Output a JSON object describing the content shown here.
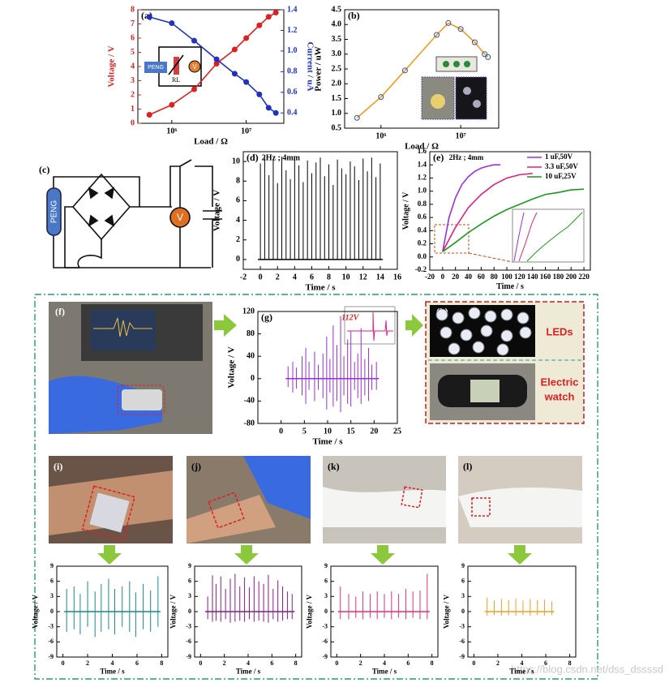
{
  "chart_data": [
    {
      "type": "line",
      "label": "(a)",
      "xscale": "log",
      "xlim": [
        350000,
        32000000
      ],
      "xticks": [
        {
          "value": 1000000,
          "label": "10⁶"
        },
        {
          "value": 10000000,
          "label": "10⁷"
        }
      ],
      "ylim": [
        0,
        8
      ],
      "yticks": [
        0,
        1,
        2,
        3,
        4,
        5,
        6,
        7,
        8
      ],
      "y2lim": [
        0.3,
        1.4
      ],
      "y2ticks": [
        0.4,
        0.6,
        0.8,
        {
          "value": 1,
          "label": "1.0"
        },
        1.2,
        1.4
      ],
      "xlabel": "Load / Ω",
      "ylabel": "Voltage / V",
      "y2label": "Current / uA",
      "ycolor": "#e02020",
      "y2color": "#2030c0",
      "x": [
        500000,
        1000000,
        2000000,
        4000000,
        7000000,
        10000000,
        15000000,
        20000000,
        25000000
      ],
      "series": [
        {
          "color": "#e02020",
          "marker": true,
          "values": [
            0.6,
            1.3,
            2.4,
            4.2,
            5.2,
            6.0,
            6.9,
            7.5,
            7.8
          ]
        },
        {
          "color": "#2030c0",
          "marker": true,
          "axis": "y2",
          "values": [
            1.33,
            1.27,
            1.1,
            0.92,
            0.78,
            0.7,
            0.58,
            0.45,
            0.4
          ]
        }
      ],
      "inset": [
        "PENG",
        "RL",
        "V"
      ]
    },
    {
      "type": "line",
      "label": "(b)",
      "xscale": "log",
      "xlim": [
        350000,
        30000000
      ],
      "xticks": [
        {
          "value": 1000000,
          "label": "10⁶"
        },
        {
          "value": 10000000,
          "label": "10⁷"
        }
      ],
      "ylim": [
        0.5,
        4.5
      ],
      "yticks": [
        0.5,
        {
          "value": 1,
          "label": "1.0"
        },
        1.5,
        {
          "value": 2,
          "label": "2.0"
        },
        2.5,
        {
          "value": 3,
          "label": "3.0"
        },
        3.5,
        {
          "value": 4,
          "label": "4.0"
        },
        4.5
      ],
      "xlabel": "Load / Ω",
      "ylabel": "Power / uW",
      "x": [
        500000,
        1000000,
        2000000,
        5000000,
        7000000,
        10000000,
        15000000,
        20000000,
        22000000
      ],
      "series": [
        {
          "color": "#f59a1a",
          "marker": true,
          "marker_color": "#3050a0",
          "values": [
            0.85,
            1.55,
            2.45,
            3.65,
            4.05,
            3.85,
            3.4,
            3.0,
            2.9
          ]
        }
      ]
    },
    {
      "type": "stem",
      "label": "(d)",
      "annotation": "2Hz ; 4mm",
      "xlim": [
        -2,
        16
      ],
      "xticks": [
        -2,
        0,
        2,
        4,
        6,
        8,
        10,
        12,
        14,
        16
      ],
      "ylim": [
        -1,
        11
      ],
      "yticks": [
        0,
        2,
        4,
        6,
        8,
        10
      ],
      "xlabel": "Time / s",
      "ylabel": "Voltage / V",
      "x": [
        0,
        0.5,
        1,
        1.5,
        2,
        2.5,
        3,
        3.5,
        4,
        4.5,
        5,
        5.5,
        6,
        6.5,
        7,
        7.5,
        8,
        8.5,
        9,
        9.5,
        10,
        10.5,
        11,
        11.5,
        12,
        12.5,
        13,
        13.5,
        14
      ],
      "series": [
        {
          "color": "#000000",
          "values": [
            9.8,
            10.4,
            8.6,
            10.2,
            7.8,
            10.5,
            9.1,
            8.2,
            10.3,
            9.6,
            7.9,
            10.1,
            8.8,
            9.9,
            10.4,
            8.5,
            9.7,
            7.6,
            10.2,
            9.3,
            8.7,
            10.0,
            9.5,
            8.1,
            10.3,
            9.0,
            10.4,
            8.4,
            9.8
          ]
        }
      ]
    },
    {
      "type": "line",
      "label": "(e)",
      "annotation": "2Hz ; 4mm",
      "legend": "upper right",
      "xlim": [
        -20,
        230
      ],
      "xticks": [
        -20,
        0,
        20,
        40,
        60,
        80,
        100,
        120,
        140,
        160,
        180,
        200,
        220
      ],
      "ylim": [
        -0.2,
        1.6
      ],
      "yticks": [
        -0.2,
        {
          "value": 0,
          "label": "0.0"
        },
        0.2,
        0.4,
        0.6,
        0.8,
        {
          "value": 1,
          "label": "1.0"
        },
        1.2,
        1.4,
        1.6
      ],
      "xlabel": "Time / s",
      "ylabel": "Voltage / V",
      "series": [
        {
          "name": "1  uF,50V",
          "color": "#9b30e0",
          "x": [
            0,
            10,
            20,
            30,
            40,
            50,
            60,
            70,
            80,
            90
          ],
          "values": [
            0.08,
            0.6,
            0.9,
            1.1,
            1.22,
            1.3,
            1.35,
            1.38,
            1.4,
            1.4
          ]
        },
        {
          "name": "3.3 uF,50V",
          "color": "#e0207a",
          "x": [
            0,
            20,
            40,
            60,
            80,
            100,
            120,
            140
          ],
          "values": [
            0.08,
            0.45,
            0.75,
            0.95,
            1.1,
            1.2,
            1.25,
            1.27
          ]
        },
        {
          "name": "10  uF,25V",
          "color": "#1a9a1a",
          "x": [
            0,
            20,
            40,
            60,
            80,
            100,
            120,
            140,
            160,
            180,
            200,
            220
          ],
          "values": [
            0.08,
            0.22,
            0.37,
            0.5,
            0.62,
            0.72,
            0.8,
            0.88,
            0.95,
            0.98,
            1.02,
            1.03
          ]
        }
      ]
    },
    {
      "type": "stem",
      "label": "(g)",
      "annotation": "112V",
      "annotation_color": "#e02020",
      "xlim": [
        -5,
        25
      ],
      "xticks": [
        0,
        5,
        10,
        15,
        20,
        25
      ],
      "ylim": [
        -80,
        120
      ],
      "yticks": [
        -80,
        -40,
        0,
        40,
        80,
        120
      ],
      "xlabel": "Time / s",
      "ylabel": "Voltage / V",
      "x": [
        1.5,
        2.5,
        3.3,
        4.5,
        5.3,
        6.0,
        7.2,
        8.0,
        9.0,
        9.8,
        10.5,
        11.2,
        12.0,
        12.8,
        13.5,
        14.3,
        15.0,
        15.8,
        16.5,
        17.2,
        18.0,
        18.8,
        19.5,
        20.5
      ],
      "series": [
        {
          "color": "#9b30d0",
          "values": [
            22,
            30,
            20,
            40,
            55,
            30,
            48,
            25,
            45,
            75,
            35,
            95,
            60,
            112,
            40,
            70,
            85,
            30,
            45,
            90,
            35,
            55,
            25,
            30
          ]
        },
        {
          "color": "#9b30d0",
          "values": [
            -15,
            -25,
            -18,
            -30,
            -45,
            -20,
            -40,
            -20,
            -35,
            -55,
            -25,
            -50,
            -40,
            -60,
            -30,
            -45,
            -50,
            -20,
            -35,
            -45,
            -30,
            -40,
            -20,
            -20
          ]
        }
      ]
    },
    {
      "type": "stem",
      "xlim": [
        -0.5,
        8.5
      ],
      "xticks": [
        0,
        2,
        4,
        6,
        8
      ],
      "ylim": [
        -9,
        9
      ],
      "yticks": [
        -9,
        -6,
        -3,
        0,
        3,
        6,
        9
      ],
      "xlabel": "Time / s",
      "ylabel": "Voltage / V",
      "x": [
        0.3,
        0.9,
        1.4,
        2.0,
        2.6,
        3.1,
        3.7,
        4.2,
        4.8,
        5.4,
        5.9,
        6.5,
        7.1,
        7.7
      ],
      "series": [
        {
          "color": "#1a8a8a",
          "values": [
            4.5,
            5,
            3.5,
            6,
            4,
            5.5,
            6.5,
            4.5,
            5,
            6,
            3.8,
            5.5,
            4.2,
            7
          ]
        },
        {
          "color": "#1a8a8a",
          "values": [
            -4,
            -3.5,
            -4.5,
            -3,
            -5,
            -4,
            -3.5,
            -4.5,
            -3,
            -4,
            -5,
            -3.5,
            -4,
            -3
          ]
        }
      ]
    },
    {
      "type": "stem",
      "xlim": [
        -0.5,
        8.5
      ],
      "xticks": [
        0,
        2,
        4,
        6,
        8
      ],
      "ylim": [
        -9,
        9
      ],
      "yticks": [
        -9,
        -6,
        -3,
        0,
        3,
        6,
        9
      ],
      "xlabel": "Time / s",
      "ylabel": "Voltage / V",
      "x": [
        0.6,
        1.0,
        1.3,
        1.7,
        2.1,
        2.5,
        2.9,
        3.3,
        3.7,
        4.1,
        4.5,
        4.9,
        5.3,
        5.7,
        6.1,
        6.5,
        6.9,
        7.3,
        7.7
      ],
      "series": [
        {
          "color": "#8b1a8b",
          "values": [
            3,
            7.2,
            5.5,
            7,
            4.5,
            6.5,
            7.5,
            5,
            6.8,
            4.8,
            7,
            6,
            5.5,
            7.3,
            4.5,
            6.2,
            5,
            4,
            3.5
          ]
        },
        {
          "color": "#8b1a8b",
          "values": [
            -1.5,
            -2,
            -1.8,
            -2,
            -1.5,
            -2.2,
            -2,
            -1.8,
            -2,
            -1.5,
            -2,
            -1.8,
            -2,
            -2.2,
            -1.5,
            -2,
            -1.8,
            -1.5,
            -1.5
          ]
        }
      ]
    },
    {
      "type": "stem",
      "xlim": [
        -0.5,
        8.5
      ],
      "xticks": [
        0,
        2,
        4,
        6,
        8
      ],
      "ylim": [
        -9,
        9
      ],
      "yticks": [
        -9,
        -6,
        -3,
        0,
        3,
        6,
        9
      ],
      "xlabel": "Time / s",
      "ylabel": "Voltage / V",
      "x": [
        0.3,
        1.0,
        1.6,
        2.2,
        2.8,
        3.4,
        4.0,
        4.6,
        5.2,
        5.8,
        6.4,
        7.0,
        7.6
      ],
      "series": [
        {
          "color": "#e0307a",
          "values": [
            5,
            3.5,
            3,
            4,
            3.5,
            4,
            3.5,
            4,
            3.5,
            4.5,
            4,
            4.2,
            7.5
          ]
        },
        {
          "color": "#e0307a",
          "values": [
            -1.5,
            -1.5,
            -1.2,
            -1.5,
            -1.2,
            -1.5,
            -1.2,
            -1.5,
            -1.2,
            -1.5,
            -1.2,
            -1.5,
            -1.5
          ]
        }
      ]
    },
    {
      "type": "stem",
      "xlim": [
        -0.5,
        8.5
      ],
      "xticks": [
        0,
        2,
        4,
        6,
        8
      ],
      "ylim": [
        -9,
        9
      ],
      "yticks": [
        -9,
        -6,
        -3,
        0,
        3,
        6,
        9
      ],
      "xlabel": "Time / s",
      "ylabel": "Voltage / V",
      "x": [
        1.1,
        1.7,
        2.3,
        2.9,
        3.5,
        4.1,
        4.7,
        5.3,
        5.9,
        6.5
      ],
      "series": [
        {
          "color": "#f0a020",
          "values": [
            2.8,
            2.2,
            2.5,
            2.3,
            2.6,
            2.2,
            2.5,
            2.3,
            2.4,
            2
          ]
        },
        {
          "color": "#f0a020",
          "values": [
            -0.8,
            -0.7,
            -0.8,
            -0.7,
            -0.8,
            -0.7,
            -0.8,
            -0.7,
            -0.8,
            -0.7
          ]
        }
      ]
    }
  ],
  "figures": {
    "c": {
      "label": "(c)",
      "source": "PENG",
      "meter": "V"
    },
    "f": {
      "label": "(f)"
    },
    "h": {
      "label": "(h)",
      "leds": "LEDs",
      "watch": [
        "Electric",
        "watch"
      ]
    },
    "i": {
      "label": "(i)"
    },
    "j": {
      "label": "(j)"
    },
    "k": {
      "label": "(k)"
    },
    "l": {
      "label": "(l)"
    }
  },
  "watermark": "https://blog.csdn.net/dss_dssssd"
}
